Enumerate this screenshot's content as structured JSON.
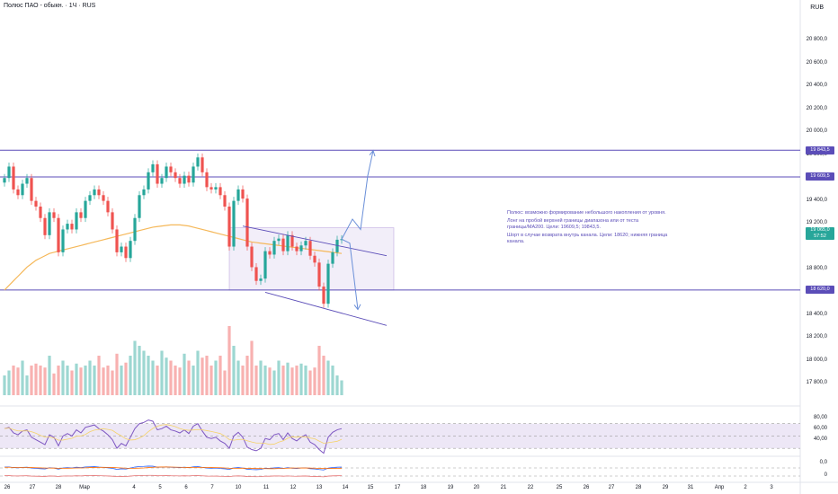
{
  "header": {
    "title": "Полюс ПАО - обыкн. · 1Ч · RUS",
    "currency": "RUB"
  },
  "colors": {
    "up": "#26a69a",
    "down": "#ef5350",
    "level": "#5b4db8",
    "ma": "#f5b85a",
    "rsi": "#7e57c2",
    "rsi_band": "#ede7f6",
    "macd": "#2962ff",
    "macd_signal": "#ff6d00"
  },
  "annotation": {
    "p1": "Полюс: возможно формирование небольшого накопления от уровня.",
    "p2": "Лонг на пробой верхней границы диапазона или от теста границы/MA200. Цели: 19609,5; 19843,5.",
    "p3": "Шорт в случае возврата внутрь канала. Цели: 18620; нижняя граница канала."
  },
  "chart_data": {
    "type": "candlestick",
    "price_axis": {
      "min": 17700,
      "max": 21000,
      "ticks": [
        "20 800,0",
        "20 600,0",
        "20 400,0",
        "20 200,0",
        "20 000,0",
        "19 800,0",
        "19 400,0",
        "19 200,0",
        "18 800,0",
        "18 600,0",
        "18 400,0",
        "18 200,0",
        "18 000,0",
        "17 800,0"
      ]
    },
    "tick_values": [
      20800,
      20600,
      20400,
      20200,
      20000,
      19800,
      19400,
      19200,
      18800,
      18600,
      18400,
      18200,
      18000,
      17800
    ],
    "levels": [
      {
        "value": 19843.5,
        "label": "19 843,5"
      },
      {
        "value": 19609.5,
        "label": "19 609,5"
      },
      {
        "value": 18620.0,
        "label": "18 620,0"
      }
    ],
    "current_price": {
      "value": 19065.0,
      "label": "19 065,0",
      "countdown": "57:52"
    },
    "range_box": {
      "from": 19165,
      "to": 18620
    },
    "x_labels": [
      "26",
      "27",
      "28",
      "Мар",
      "4",
      "5",
      "6",
      "7",
      "10",
      "11",
      "12",
      "13",
      "14",
      "15",
      "17",
      "18",
      "19",
      "20",
      "21",
      "22",
      "25",
      "26",
      "27",
      "28",
      "29",
      "31",
      "Апр",
      "2",
      "3"
    ],
    "rsi_axis": [
      "80,00",
      "60,00",
      "40,00"
    ],
    "rsi_levels": [
      70,
      50,
      30
    ],
    "macd_axis": [
      "0,0",
      "0"
    ],
    "price_close": [
      19600,
      19700,
      19500,
      19450,
      19550,
      19600,
      19400,
      19350,
      19250,
      19100,
      19300,
      19250,
      18950,
      19150,
      19200,
      19150,
      19300,
      19250,
      19400,
      19450,
      19500,
      19450,
      19400,
      19300,
      19150,
      18950,
      19000,
      18900,
      19050,
      19250,
      19450,
      19500,
      19650,
      19720,
      19550,
      19600,
      19700,
      19650,
      19600,
      19550,
      19620,
      19560,
      19700,
      19780,
      19650,
      19520,
      19500,
      19520,
      19450,
      19350,
      19000,
      19400,
      19500,
      19420,
      19000,
      18820,
      18700,
      18720,
      18960,
      18930,
      19050,
      19070,
      18960,
      19100,
      19000,
      18960,
      19010,
      19050,
      18920,
      18860,
      18650,
      18500,
      18850,
      18950,
      19060,
      19065
    ],
    "volume": [
      0.2,
      0.25,
      0.3,
      0.28,
      0.35,
      0.2,
      0.3,
      0.32,
      0.3,
      0.28,
      0.4,
      0.22,
      0.3,
      0.35,
      0.3,
      0.25,
      0.32,
      0.28,
      0.3,
      0.35,
      0.3,
      0.4,
      0.28,
      0.3,
      0.25,
      0.42,
      0.3,
      0.33,
      0.4,
      0.55,
      0.5,
      0.45,
      0.4,
      0.35,
      0.3,
      0.45,
      0.38,
      0.35,
      0.3,
      0.28,
      0.42,
      0.35,
      0.3,
      0.45,
      0.38,
      0.4,
      0.3,
      0.35,
      0.4,
      0.25,
      0.7,
      0.5,
      0.35,
      0.3,
      0.4,
      0.55,
      0.3,
      0.35,
      0.3,
      0.28,
      0.25,
      0.35,
      0.3,
      0.33,
      0.28,
      0.3,
      0.32,
      0.3,
      0.25,
      0.28,
      0.5,
      0.4,
      0.35,
      0.3,
      0.2,
      0.15
    ],
    "rsi": [
      62,
      64,
      55,
      52,
      58,
      60,
      48,
      44,
      40,
      36,
      52,
      48,
      34,
      50,
      54,
      50,
      60,
      55,
      64,
      66,
      68,
      62,
      58,
      52,
      44,
      30,
      38,
      34,
      48,
      62,
      70,
      72,
      76,
      74,
      60,
      62,
      66,
      60,
      58,
      55,
      60,
      54,
      66,
      70,
      58,
      48,
      46,
      48,
      42,
      38,
      30,
      50,
      56,
      48,
      32,
      28,
      26,
      30,
      46,
      44,
      52,
      54,
      44,
      55,
      46,
      42,
      48,
      52,
      40,
      36,
      28,
      22,
      48,
      56,
      60,
      62
    ],
    "ma200": [
      18620,
      18660,
      18700,
      18740,
      18780,
      18820,
      18850,
      18880,
      18900,
      18920,
      18940,
      18950,
      18960,
      18970,
      18980,
      18990,
      19000,
      19010,
      19020,
      19030,
      19040,
      19050,
      19060,
      19070,
      19080,
      19090,
      19100,
      19110,
      19120,
      19130,
      19140,
      19150,
      19160,
      19170,
      19175,
      19180,
      19185,
      19190,
      19190,
      19190,
      19185,
      19180,
      19170,
      19160,
      19150,
      19140,
      19130,
      19120,
      19110,
      19100,
      19090,
      19080,
      19070,
      19060,
      19050,
      19040,
      19035,
      19030,
      19025,
      19020,
      19015,
      19010,
      19005,
      19000,
      18995,
      18990,
      18985,
      18980,
      18975,
      18970,
      18965,
      18960,
      18955,
      18950,
      18945,
      18940
    ]
  }
}
